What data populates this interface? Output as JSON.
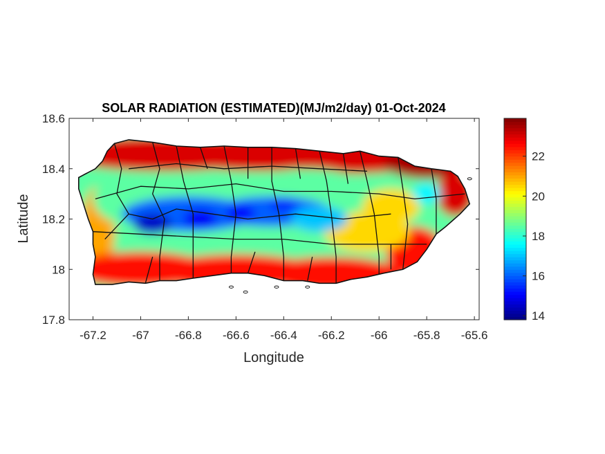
{
  "chart_data": {
    "type": "heatmap",
    "title": "SOLAR RADIATION (ESTIMATED)(MJ/m2/day) 01-Oct-2024",
    "xlabel": "Longitude",
    "ylabel": "Latitude",
    "xlim": [
      -67.3,
      -65.58
    ],
    "ylim": [
      17.8,
      18.6
    ],
    "x_ticks": [
      -67.2,
      -67,
      -66.8,
      -66.6,
      -66.4,
      -66.2,
      -66,
      -65.8,
      -65.6
    ],
    "x_tick_labels": [
      "-67.2",
      "-67",
      "-66.8",
      "-66.6",
      "-66.4",
      "-66.2",
      "-66",
      "-65.8",
      "-65.6"
    ],
    "y_ticks": [
      17.8,
      18,
      18.2,
      18.4,
      18.6
    ],
    "y_tick_labels": [
      "17.8",
      "18",
      "18.2",
      "18.4",
      "18.6"
    ],
    "colorbar": {
      "colormap": "jet",
      "range": [
        13.8,
        23.9
      ],
      "ticks": [
        14,
        16,
        18,
        20,
        22
      ],
      "tick_labels": [
        "14",
        "16",
        "18",
        "20",
        "22"
      ]
    },
    "grid": false,
    "region": "Puerto Rico (municipality boundaries)",
    "spatial_pattern": {
      "north_coast": 23,
      "northeast_coast": 23.5,
      "south_coast": 22.5,
      "west_coast": 21,
      "central_cordillera": 16,
      "cordillera_minimum": 14.5,
      "interior_north": 18.5,
      "eastern_interior": 20.5,
      "el_yunque": 17.5
    }
  }
}
